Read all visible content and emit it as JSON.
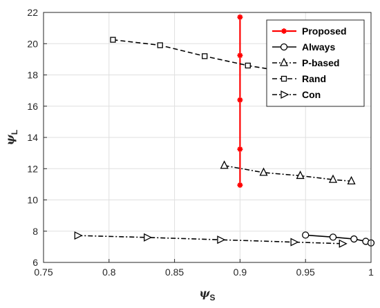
{
  "chart_data": {
    "type": "line",
    "xlabel": "ψ",
    "xlabel_sub": "S",
    "ylabel": "ψ",
    "ylabel_sub": "L",
    "xlim": [
      0.75,
      1
    ],
    "ylim": [
      6,
      22
    ],
    "xticks": [
      "0.75",
      "0.8",
      "0.85",
      "0.9",
      "0.95",
      "1"
    ],
    "yticks": [
      "6",
      "8",
      "10",
      "12",
      "14",
      "16",
      "18",
      "20",
      "22"
    ],
    "grid": true,
    "legend_position": "top-right",
    "series": [
      {
        "name": "Proposed",
        "color": "#ff0000",
        "line_style": "solid",
        "marker": "asterisk",
        "points": [
          [
            0.9,
            10.95
          ],
          [
            0.9,
            13.25
          ],
          [
            0.9,
            16.4
          ],
          [
            0.9,
            19.25
          ],
          [
            0.9,
            21.7
          ]
        ]
      },
      {
        "name": "Always",
        "color": "#000000",
        "line_style": "solid",
        "marker": "circle",
        "points": [
          [
            0.95,
            7.75
          ],
          [
            0.971,
            7.62
          ],
          [
            0.987,
            7.5
          ],
          [
            0.996,
            7.35
          ],
          [
            1.0,
            7.25
          ]
        ]
      },
      {
        "name": "P-based",
        "color": "#000000",
        "line_style": "dash-dot",
        "marker": "triangle-up",
        "points": [
          [
            0.888,
            12.2
          ],
          [
            0.918,
            11.75
          ],
          [
            0.946,
            11.55
          ],
          [
            0.971,
            11.3
          ],
          [
            0.985,
            11.2
          ]
        ]
      },
      {
        "name": "Rand",
        "color": "#000000",
        "line_style": "dashed",
        "marker": "square",
        "points": [
          [
            0.803,
            20.25
          ],
          [
            0.839,
            19.9
          ],
          [
            0.873,
            19.2
          ],
          [
            0.906,
            18.6
          ],
          [
            0.935,
            18.2
          ]
        ]
      },
      {
        "name": "Con",
        "color": "#000000",
        "line_style": "dash-dot",
        "marker": "triangle-right",
        "points": [
          [
            0.776,
            7.72
          ],
          [
            0.829,
            7.6
          ],
          [
            0.885,
            7.45
          ],
          [
            0.941,
            7.3
          ],
          [
            0.978,
            7.2
          ]
        ]
      }
    ]
  }
}
